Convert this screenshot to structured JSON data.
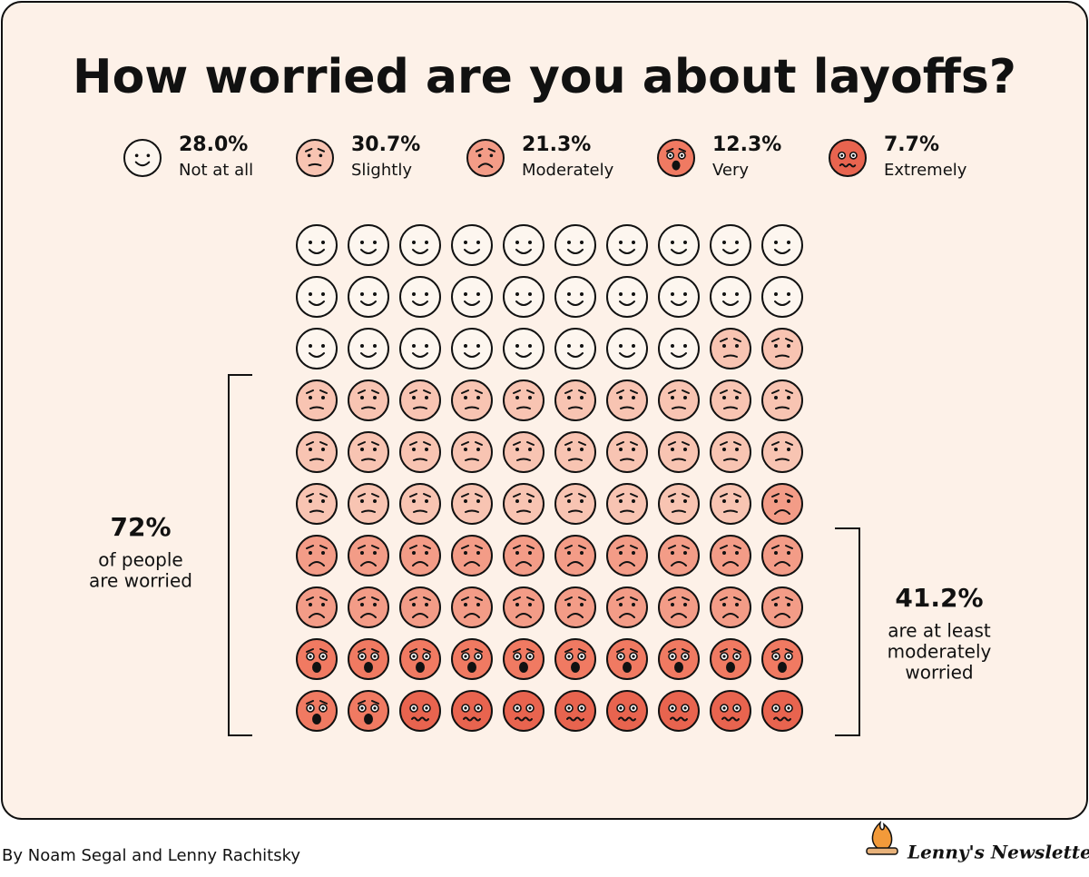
{
  "chart_data": {
    "type": "waffle",
    "title": "How worried are you about layoffs?",
    "series": [
      {
        "name": "Not at all",
        "value": 28.0,
        "value_label": "28.0%",
        "icons": 28,
        "color": "#fdf6ef"
      },
      {
        "name": "Slightly",
        "value": 30.7,
        "value_label": "30.7%",
        "icons": 31,
        "color": "#f8c4b2"
      },
      {
        "name": "Moderately",
        "value": 21.3,
        "value_label": "21.3%",
        "icons": 21,
        "color": "#f39c87"
      },
      {
        "name": "Very",
        "value": 12.3,
        "value_label": "12.3%",
        "icons": 12,
        "color": "#f07a62"
      },
      {
        "name": "Extremely",
        "value": 7.7,
        "value_label": "7.7%",
        "icons": 8,
        "color": "#e8644f"
      }
    ],
    "annotations": [
      {
        "value": 72,
        "label": "72%",
        "lines": [
          "of people",
          "are worried"
        ]
      },
      {
        "value": 41.2,
        "label": "41.2%",
        "lines": [
          "are at least",
          "moderately",
          "worried"
        ]
      }
    ],
    "byline": "By Noam Segal and Lenny Rachitsky",
    "brand": "Lenny's Newsletter"
  }
}
